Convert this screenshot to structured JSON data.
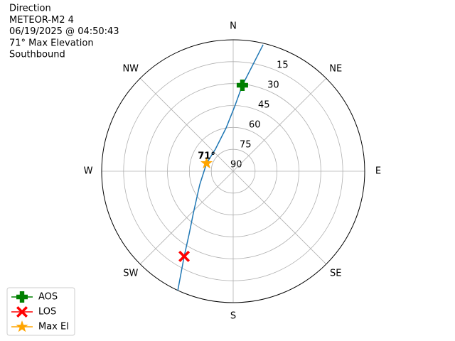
{
  "chart_data": {
    "type": "polar",
    "title_lines": [
      "Direction",
      "METEOR-M2 4",
      "06/19/2025 @ 04:50:43",
      "71° Max Elevation",
      "Southbound"
    ],
    "xlim": [
      0,
      360
    ],
    "xticks": [
      {
        "value": 0,
        "label": "N"
      },
      {
        "value": 45,
        "label": "NE"
      },
      {
        "value": 90,
        "label": "E"
      },
      {
        "value": 135,
        "label": "SE"
      },
      {
        "value": 180,
        "label": "S"
      },
      {
        "value": 225,
        "label": "SW"
      },
      {
        "value": 270,
        "label": "W"
      },
      {
        "value": 315,
        "label": "NW"
      }
    ],
    "ylim": [
      90,
      0
    ],
    "yticks": [
      15,
      30,
      45,
      60,
      75,
      90
    ],
    "grid": true,
    "legend": "lower left",
    "series": [
      {
        "color": "#1f77b4",
        "azimuth": [
          13.3,
          6.1,
          1.3,
          350.7,
          321.1,
          286.6,
          248,
          223.5,
          214.9,
          209.9,
          204.9
        ],
        "elevation": [
          1,
          30.8,
          45.7,
          60,
          70.6,
          71,
          65.3,
          50.4,
          37.2,
          22.7,
          0
        ]
      },
      {
        "name": "AOS",
        "color": "green",
        "marker": "plus",
        "azimuth": [
          6.1
        ],
        "elevation": [
          30.8
        ]
      },
      {
        "name": "LOS",
        "color": "red",
        "marker": "x",
        "azimuth": [
          209.9
        ],
        "elevation": [
          22.7
        ]
      },
      {
        "name": "Max El",
        "color": "orange",
        "marker": "star",
        "azimuth": [
          286.6
        ],
        "elevation": [
          71
        ],
        "value_labels": [
          "71°"
        ]
      }
    ]
  }
}
